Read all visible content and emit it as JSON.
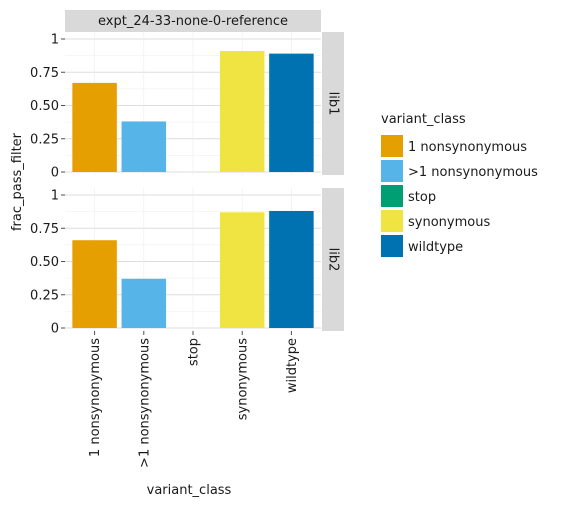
{
  "chart_data": {
    "type": "bar",
    "facet_title": "expt_24-33-none-0-reference",
    "xlabel": "variant_class",
    "ylabel": "frac_pass_filter",
    "categories": [
      "1 nonsynonymous",
      ">1 nonsynonymous",
      "stop",
      "synonymous",
      "wildtype"
    ],
    "ylim": [
      0,
      1
    ],
    "yticks": [
      "0",
      "0.25",
      "0.50",
      "0.75",
      "1"
    ],
    "ytick_values": [
      0,
      0.25,
      0.5,
      0.75,
      1
    ],
    "grid": true,
    "legend": {
      "title": "variant_class",
      "placement": "right",
      "entries": [
        {
          "label": "1 nonsynonymous",
          "color": "#E69F00"
        },
        {
          "label": ">1 nonsynonymous",
          "color": "#56B4E9"
        },
        {
          "label": "stop",
          "color": "#009E73"
        },
        {
          "label": "synonymous",
          "color": "#F0E442"
        },
        {
          "label": "wildtype",
          "color": "#0072B2"
        }
      ]
    },
    "panels": [
      {
        "label": "lib1",
        "values": [
          0.67,
          0.38,
          0.0,
          0.91,
          0.89
        ]
      },
      {
        "label": "lib2",
        "values": [
          0.66,
          0.37,
          0.0,
          0.87,
          0.88
        ]
      }
    ]
  }
}
